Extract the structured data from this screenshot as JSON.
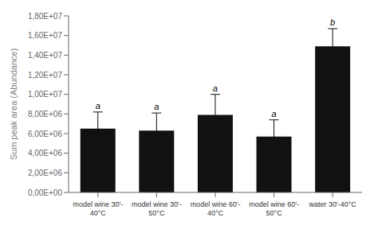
{
  "chart_data": {
    "type": "bar",
    "ylabel": "Sum peak area (Abundance)",
    "categories": [
      "model wine 30'-\n40°C",
      "model wine 30'-\n50°C",
      "model wine 60'-\n40°C",
      "model wine 60'-\n50°C",
      "water 30'-40°C"
    ],
    "values": [
      6500000,
      6300000,
      7900000,
      5700000,
      14900000
    ],
    "errors": [
      1700000,
      1800000,
      2100000,
      1700000,
      1800000
    ],
    "significance_labels": [
      "a",
      "a",
      "a",
      "a",
      "b"
    ],
    "color": "#111111",
    "ylim": [
      0,
      18000000
    ],
    "yticks": [
      {
        "value": 0,
        "label": "0,00E+00"
      },
      {
        "value": 2000000,
        "label": "2,00E+06"
      },
      {
        "value": 4000000,
        "label": "4,00E+06"
      },
      {
        "value": 6000000,
        "label": "6,00E+06"
      },
      {
        "value": 8000000,
        "label": "8,00E+06"
      },
      {
        "value": 10000000,
        "label": "1,00E+07"
      },
      {
        "value": 12000000,
        "label": "1,20E+07"
      },
      {
        "value": 14000000,
        "label": "1,40E+07"
      },
      {
        "value": 16000000,
        "label": "1,60E+07"
      },
      {
        "value": 18000000,
        "label": "1,80E+07"
      }
    ],
    "grid": false
  }
}
